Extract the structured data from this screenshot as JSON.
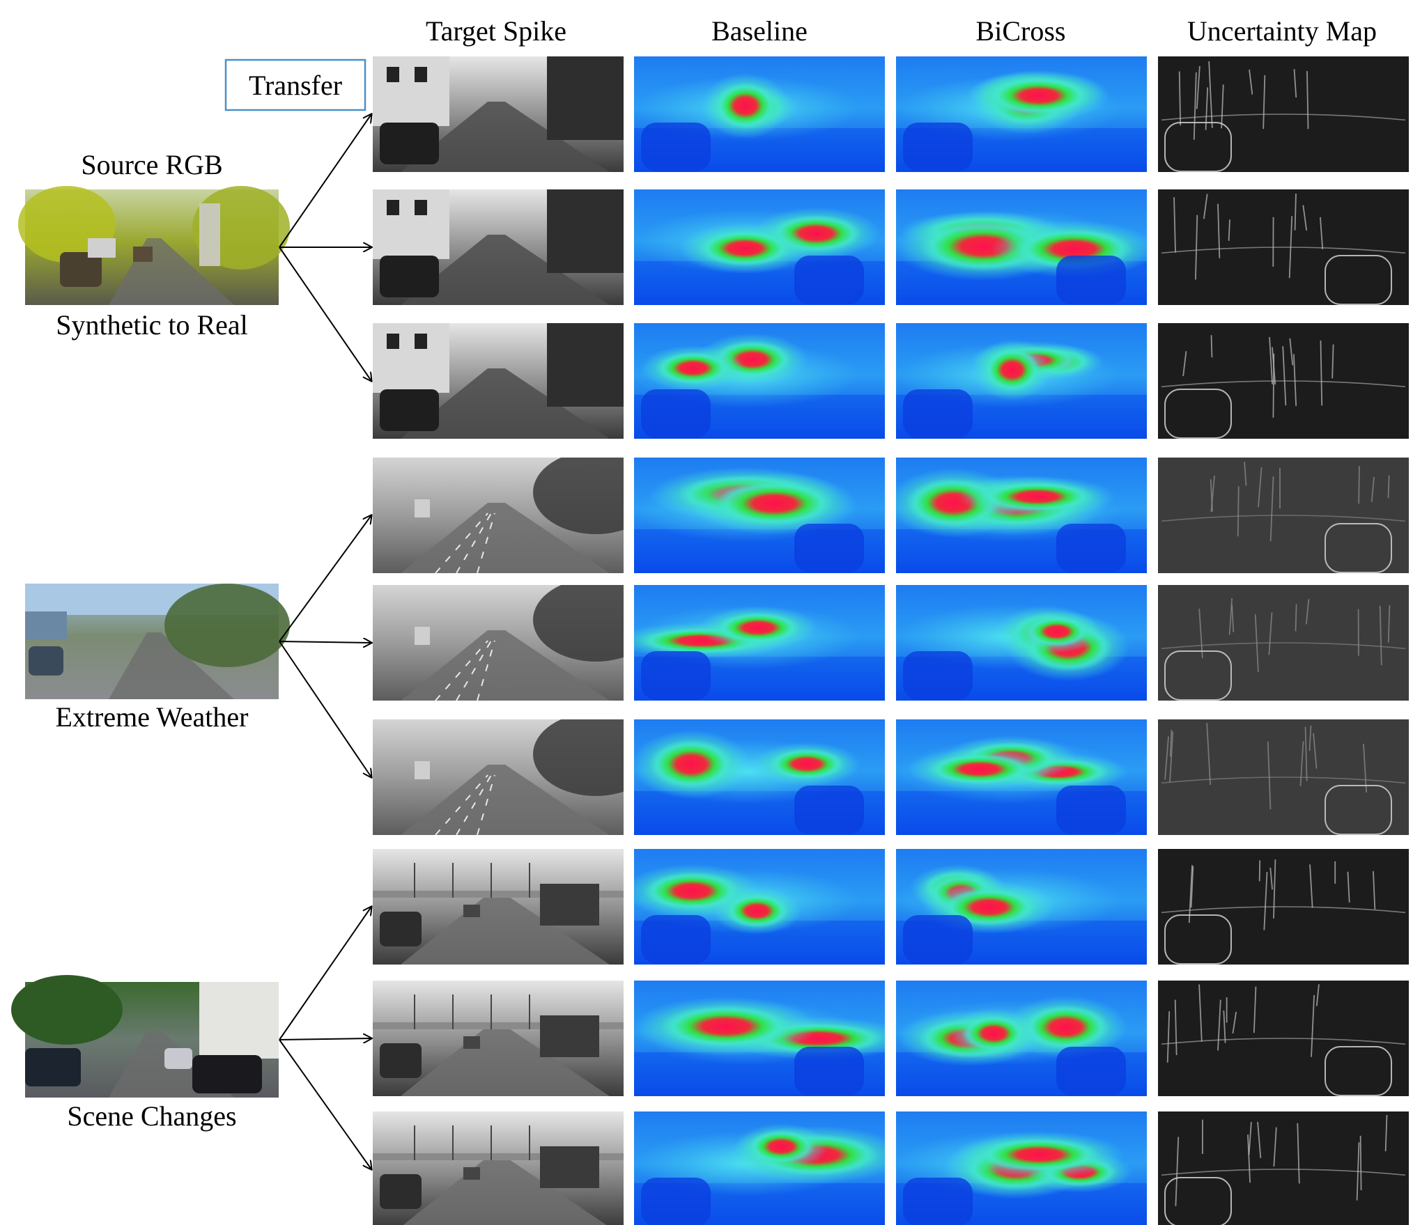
{
  "column_headers": [
    "Target Spike",
    "Baseline",
    "BiCross",
    "Uncertainty Map"
  ],
  "transfer_label": "Transfer",
  "source_rgb_label": "Source RGB",
  "groups": [
    {
      "label": "Synthetic to Real",
      "source": "synthetic",
      "rows": 3
    },
    {
      "label": "Extreme Weather",
      "source": "weather",
      "rows": 3
    },
    {
      "label": "Scene Changes",
      "source": "scene",
      "rows": 3
    }
  ],
  "colors": {
    "box_border": "#4a90c8",
    "arrow": "#000000",
    "depth_blue": "#0a4cf0",
    "depth_cyan": "#28c8f0",
    "depth_green": "#32e650",
    "depth_red": "#f01446"
  }
}
